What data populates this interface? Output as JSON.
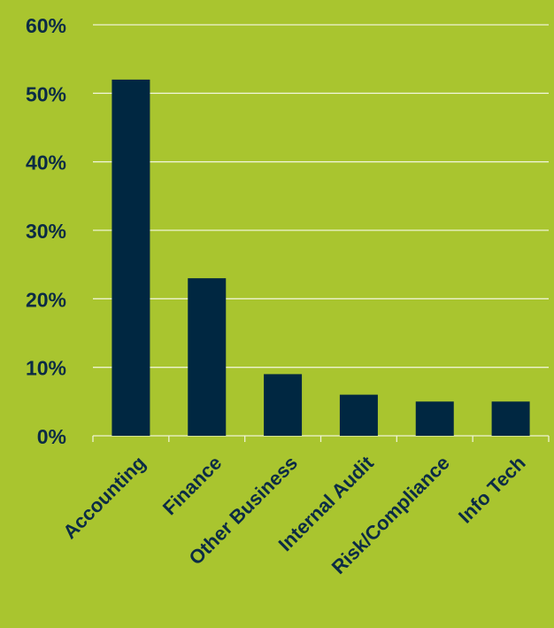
{
  "chart_data": {
    "type": "bar",
    "categories": [
      "Accounting",
      "Finance",
      "Other Business",
      "Internal Audit",
      "Risk/Compliance",
      "Info Tech"
    ],
    "values": [
      52,
      23,
      9,
      6,
      5,
      5
    ],
    "unit": "%",
    "ylim": [
      0,
      60
    ],
    "yticks": [
      "0%",
      "10%",
      "20%",
      "30%",
      "40%",
      "50%",
      "60%"
    ],
    "grid": true,
    "legend": "none",
    "title": "",
    "xlabel": "",
    "ylabel": ""
  },
  "colors": {
    "background": "#a9c52f",
    "bar": "#002741",
    "text": "#0b2b45",
    "grid": "#eef3d2"
  }
}
